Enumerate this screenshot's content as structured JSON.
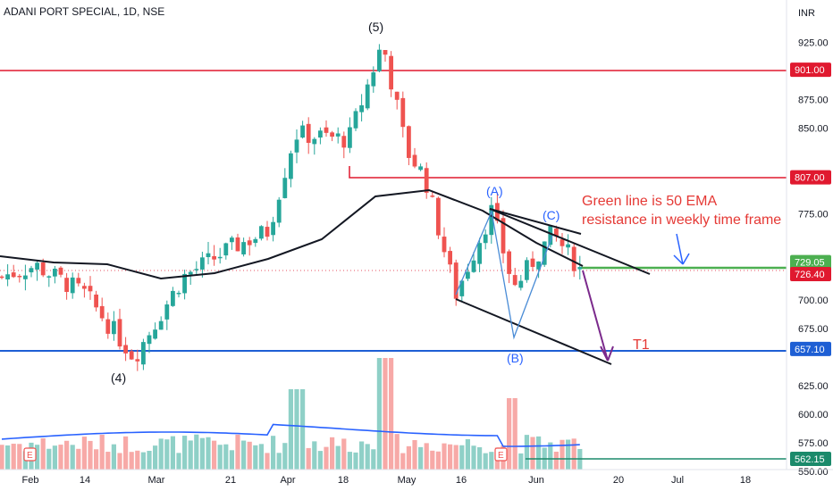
{
  "header": {
    "symbol_title": "ADANI PORT SPECIAL, 1D, NSE"
  },
  "price_axis": {
    "unit": "INR",
    "ticks": [
      "925.00",
      "875.00",
      "850.00",
      "775.00",
      "700.00",
      "675.00",
      "625.00",
      "600.00",
      "575.00",
      "550.00"
    ]
  },
  "time_axis": {
    "ticks": [
      "Feb",
      "14",
      "Mar",
      "21",
      "Apr",
      "18",
      "May",
      "16",
      "Jun",
      "20",
      "Jul",
      "18"
    ]
  },
  "price_badges": [
    {
      "label": "901.00",
      "color": "#e0192f"
    },
    {
      "label": "807.00",
      "color": "#e0192f"
    },
    {
      "label": "729.05",
      "color": "#4caf50"
    },
    {
      "label": "726.40",
      "color": "#e0192f"
    },
    {
      "label": "657.10",
      "color": "#1e5fd4"
    },
    {
      "label": "562.15",
      "color": "#1b8a6b"
    }
  ],
  "wave_labels": {
    "w5": "(5)",
    "w4": "(4)",
    "a": "(A)",
    "b": "(B)",
    "c": "(C)"
  },
  "annotations": {
    "note_line1": "Green line is 50 EMA",
    "note_line2": "resistance in weekly time frame",
    "target": "T1"
  },
  "volume_markers": [
    "E",
    "E"
  ],
  "colors": {
    "up": "#26a69a",
    "down": "#ef5350",
    "vol_up": "#8fd0c7",
    "vol_down": "#f7a9a7",
    "ema": "#131722",
    "vol_ma": "#2962ff",
    "resistance": "#e0192f",
    "support": "#1e5fd4",
    "green_ema": "#4caf50",
    "projection": "#7b2a8c"
  },
  "chart_data": {
    "type": "candlestick",
    "title": "ADANI PORT SPECIAL, 1D, NSE",
    "yunit": "INR",
    "ylim": [
      550,
      935
    ],
    "x_range": [
      "2022-01-28",
      "2022-07-26"
    ],
    "candles_sampled": [
      {
        "date": "Feb",
        "close": 725
      },
      {
        "date": "Feb 14",
        "close": 705
      },
      {
        "date": "Mar",
        "close": 650
      },
      {
        "date": "Mar 21",
        "close": 745
      },
      {
        "date": "Apr",
        "close": 840
      },
      {
        "date": "Apr 18",
        "close": 835
      },
      {
        "date": "Apr peak",
        "close": 925
      },
      {
        "date": "May",
        "close": 810
      },
      {
        "date": "May 16",
        "close": 710
      },
      {
        "date": "late May",
        "close": 765
      },
      {
        "date": "Jun",
        "close": 740
      },
      {
        "date": "last",
        "close": 726.4
      }
    ],
    "horizontal_levels": [
      901.0,
      807.0,
      729.05,
      726.4,
      657.1,
      562.15
    ],
    "series": [
      {
        "name": "50 EMA",
        "values": [
          728,
          722,
          720,
          718,
          723,
          760,
          800,
          805,
          785,
          765,
          748,
          729
        ]
      }
    ]
  }
}
